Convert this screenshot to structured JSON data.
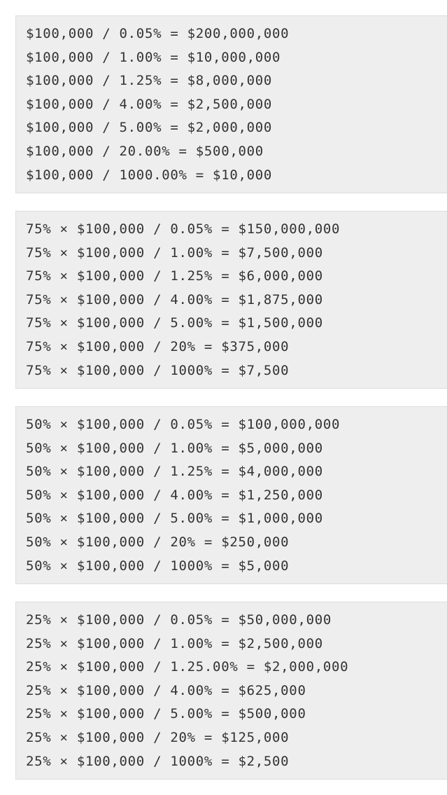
{
  "blocks": [
    {
      "lines": [
        "$100,000 / 0.05% = $200,000,000",
        "$100,000 / 1.00% = $10,000,000",
        "$100,000 / 1.25% = $8,000,000",
        "$100,000 / 4.00% = $2,500,000",
        "$100,000 / 5.00% = $2,000,000",
        "$100,000 / 20.00% = $500,000",
        "$100,000 / 1000.00% = $10,000"
      ]
    },
    {
      "lines": [
        "75% × $100,000 / 0.05% = $150,000,000",
        "75% × $100,000 / 1.00% = $7,500,000",
        "75% × $100,000 / 1.25% = $6,000,000",
        "75% × $100,000 / 4.00% = $1,875,000",
        "75% × $100,000 / 5.00% = $1,500,000",
        "75% × $100,000 / 20% = $375,000",
        "75% × $100,000 / 1000% = $7,500"
      ]
    },
    {
      "lines": [
        "50% × $100,000 / 0.05% = $100,000,000",
        "50% × $100,000 / 1.00% = $5,000,000",
        "50% × $100,000 / 1.25% = $4,000,000",
        "50% × $100,000 / 4.00% = $1,250,000",
        "50% × $100,000 / 5.00% = $1,000,000",
        "50% × $100,000 / 20% = $250,000",
        "50% × $100,000 / 1000% = $5,000"
      ]
    },
    {
      "lines": [
        "25% × $100,000 / 0.05% = $50,000,000",
        "25% × $100,000 / 1.00% = $2,500,000",
        "25% × $100,000 / 1.25.00% = $2,000,000",
        "25% × $100,000 / 4.00% = $625,000",
        "25% × $100,000 / 5.00% = $500,000",
        "25% × $100,000 / 20% = $125,000",
        "25% × $100,000 / 1000% = $2,500"
      ]
    }
  ]
}
